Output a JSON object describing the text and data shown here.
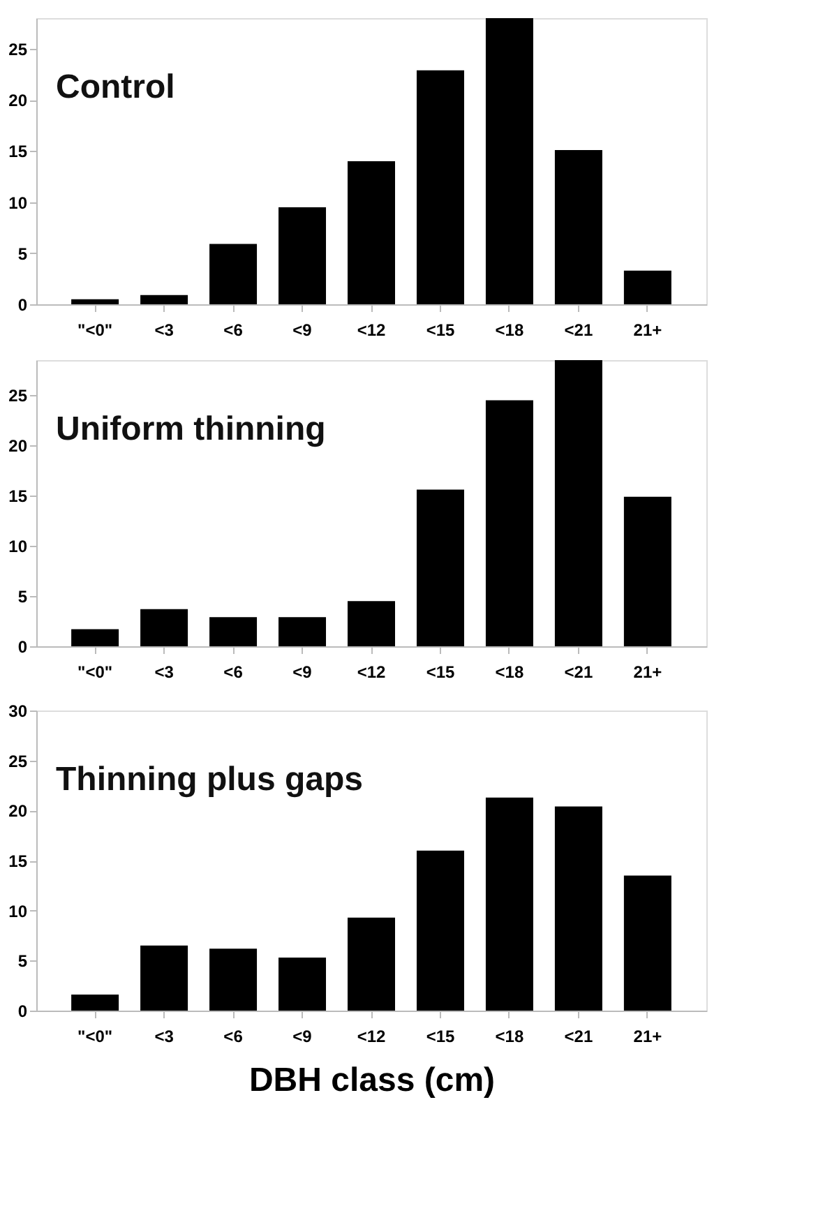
{
  "chart_data": [
    {
      "type": "bar",
      "title": "Control",
      "categories": [
        "\"<0\"",
        "<3",
        "<6",
        "<9",
        "<12",
        "<15",
        "<18",
        "<21",
        "21+"
      ],
      "values": [
        0.5,
        0.9,
        5.9,
        9.5,
        14.0,
        22.9,
        28.0,
        15.1,
        3.3
      ],
      "color": "#000000",
      "ylim": [
        0,
        28
      ],
      "yticks": [
        0,
        5,
        10,
        15,
        20,
        25
      ],
      "grid": false
    },
    {
      "type": "bar",
      "title": "Uniform thinning",
      "categories": [
        "\"<0\"",
        "<3",
        "<6",
        "<9",
        "<12",
        "<15",
        "<18",
        "<21",
        "21+"
      ],
      "values": [
        1.7,
        3.7,
        2.9,
        2.9,
        4.5,
        15.6,
        24.5,
        28.5,
        14.9
      ],
      "color": "#000000",
      "ylim": [
        0,
        28.5
      ],
      "yticks": [
        0,
        5,
        10,
        15,
        20,
        25
      ],
      "grid": false
    },
    {
      "type": "bar",
      "title": "Thinning plus gaps",
      "xlabel": "DBH class (cm)",
      "categories": [
        "\"<0\"",
        "<3",
        "<6",
        "<9",
        "<12",
        "<15",
        "<18",
        "<21",
        "21+"
      ],
      "values": [
        1.6,
        6.5,
        6.2,
        5.3,
        9.3,
        16.0,
        21.3,
        20.4,
        13.5
      ],
      "color": "#000000",
      "ylim": [
        0,
        30
      ],
      "yticks": [
        0,
        5,
        10,
        15,
        20,
        25,
        30
      ],
      "grid": false
    }
  ]
}
